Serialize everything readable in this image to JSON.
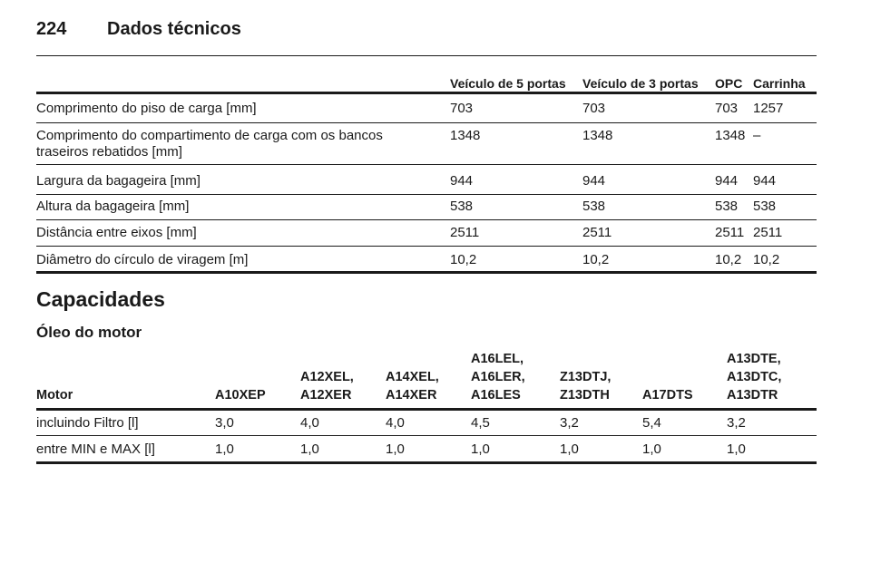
{
  "header": {
    "page_number": "224",
    "title": "Dados técnicos"
  },
  "dimensions_table": {
    "columns": [
      "Veículo de 5 portas",
      "Veículo de 3 portas",
      "OPC",
      "Carrinha"
    ],
    "rows": [
      [
        "Comprimento do piso de carga [mm]",
        "703",
        "703",
        "703",
        "1257"
      ],
      [
        "Comprimento do compartimento de carga com os bancos traseiros rebatidos [mm]",
        "1348",
        "1348",
        "1348",
        "–"
      ],
      [
        "Largura da bagageira [mm]",
        "944",
        "944",
        "944",
        "944"
      ],
      [
        "Altura da bagageira [mm]",
        "538",
        "538",
        "538",
        "538"
      ],
      [
        "Distância entre eixos [mm]",
        "2511",
        "2511",
        "2511",
        "2511"
      ],
      [
        "Diâmetro do círculo de viragem [m]",
        "10,2",
        "10,2",
        "10,2",
        "10,2"
      ]
    ]
  },
  "section_title": "Capacidades",
  "subsection_title": "Óleo do motor",
  "oil_table": {
    "columns": [
      "Motor",
      "A10XEP",
      "A12XEL,\nA12XER",
      "A14XEL,\nA14XER",
      "A16LEL,\nA16LER,\nA16LES",
      "Z13DTJ,\nZ13DTH",
      "A17DTS",
      "A13DTE,\nA13DTC,\nA13DTR"
    ],
    "rows": [
      [
        "incluindo Filtro [l]",
        "3,0",
        "4,0",
        "4,0",
        "4,5",
        "3,2",
        "5,4",
        "3,2"
      ],
      [
        "entre MIN e MAX [l]",
        "1,0",
        "1,0",
        "1,0",
        "1,0",
        "1,0",
        "1,0",
        "1,0"
      ]
    ]
  }
}
